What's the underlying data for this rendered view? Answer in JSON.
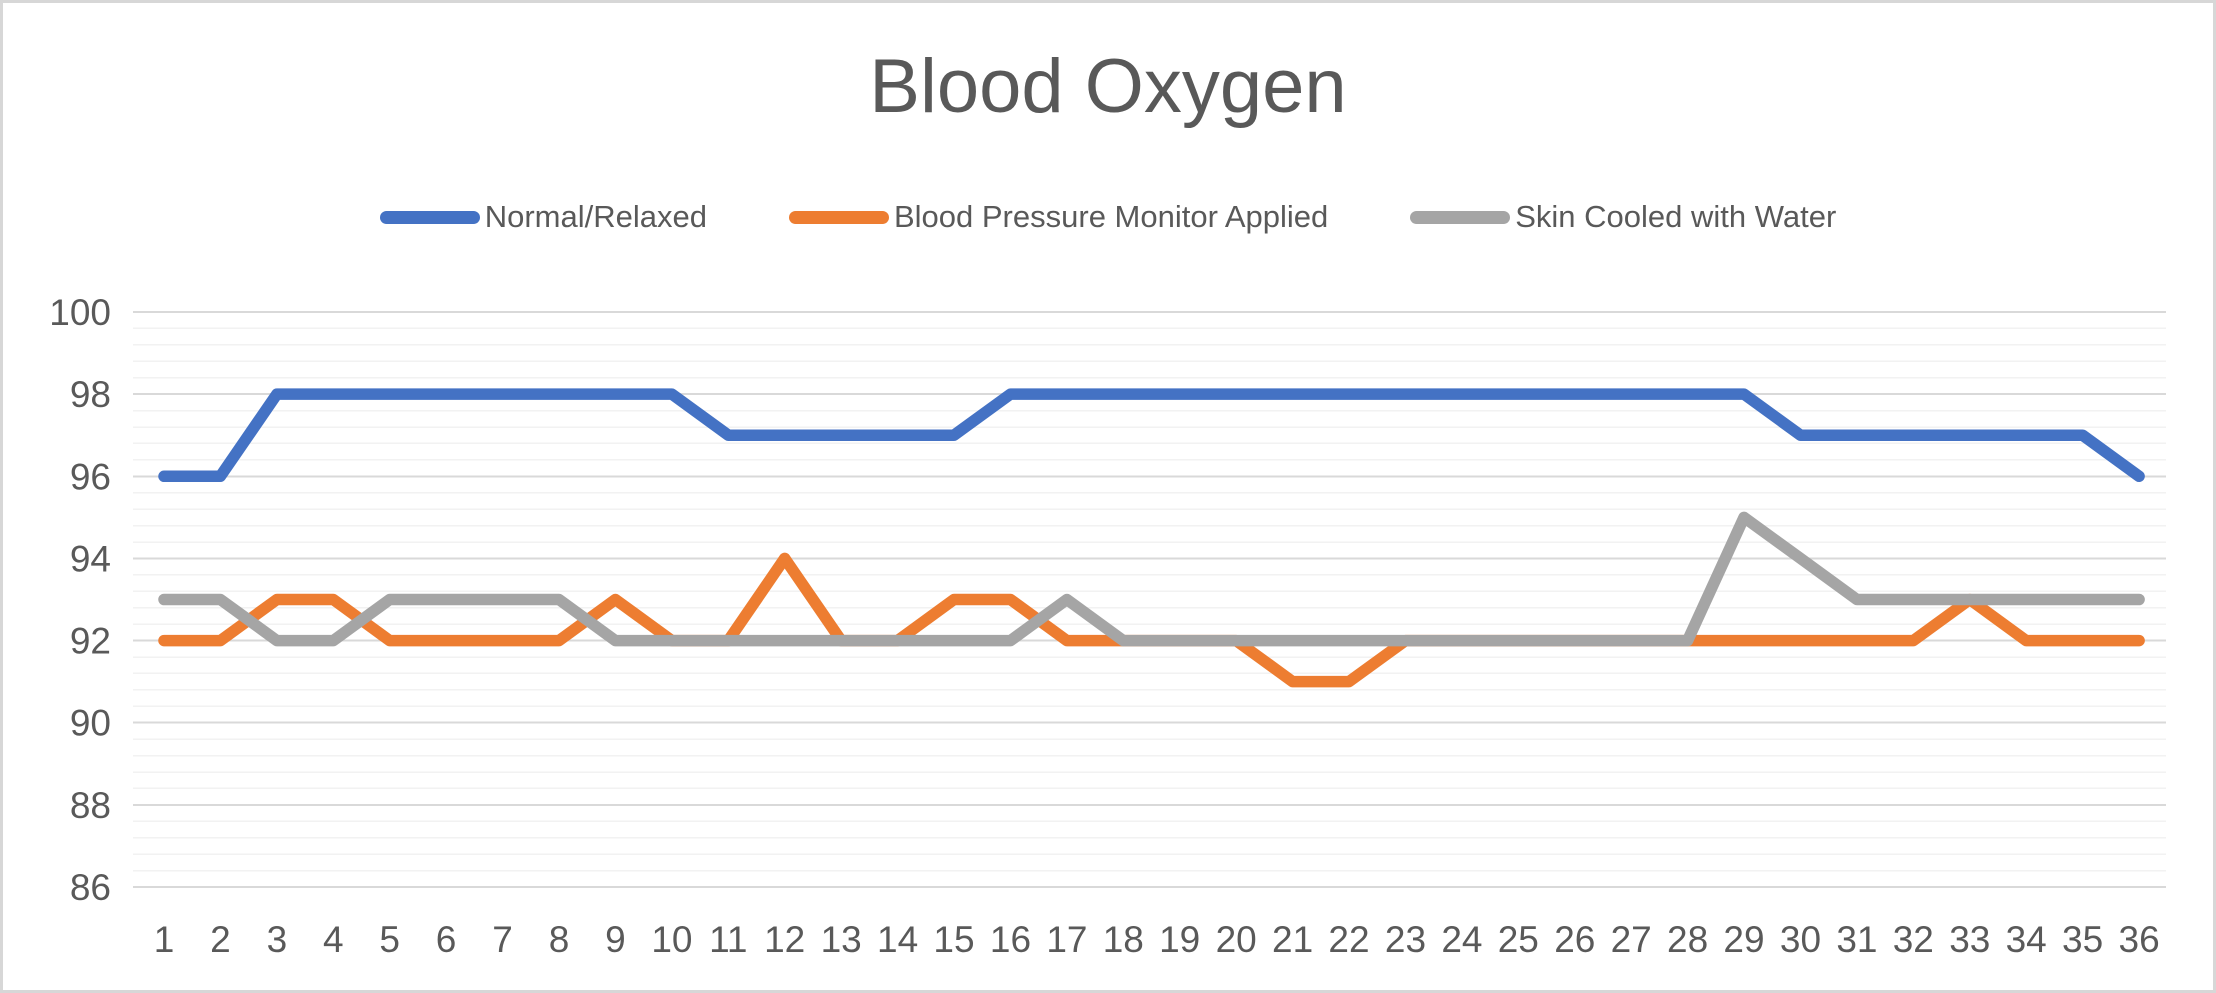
{
  "chart": {
    "background": "#ffffff",
    "border_color": "#d7d7d7",
    "text_color": "#595959",
    "gridline_major_color": "#d9d9d9",
    "gridline_minor_color": "#f2f2f2"
  },
  "chart_data": {
    "type": "line",
    "title": "Blood Oxygen",
    "x": [
      1,
      2,
      3,
      4,
      5,
      6,
      7,
      8,
      9,
      10,
      11,
      12,
      13,
      14,
      15,
      16,
      17,
      18,
      19,
      20,
      21,
      22,
      23,
      24,
      25,
      26,
      27,
      28,
      29,
      30,
      31,
      32,
      33,
      34,
      35,
      36
    ],
    "series": [
      {
        "name": "Normal/Relaxed",
        "color": "#4472C4",
        "values": [
          96,
          96,
          98,
          98,
          98,
          98,
          98,
          98,
          98,
          98,
          97,
          97,
          97,
          97,
          97,
          98,
          98,
          98,
          98,
          98,
          98,
          98,
          98,
          98,
          98,
          98,
          98,
          98,
          98,
          97,
          97,
          97,
          97,
          97,
          97,
          96
        ]
      },
      {
        "name": "Blood Pressure Monitor Applied",
        "color": "#ED7D31",
        "values": [
          92,
          92,
          93,
          93,
          92,
          92,
          92,
          92,
          93,
          92,
          92,
          94,
          92,
          92,
          93,
          93,
          92,
          92,
          92,
          92,
          91,
          91,
          92,
          92,
          92,
          92,
          92,
          92,
          92,
          92,
          92,
          92,
          93,
          92,
          92,
          92
        ]
      },
      {
        "name": "Skin Cooled with Water",
        "color": "#A5A5A5",
        "values": [
          93,
          93,
          92,
          92,
          93,
          93,
          93,
          93,
          92,
          92,
          92,
          92,
          92,
          92,
          92,
          92,
          93,
          92,
          92,
          92,
          92,
          92,
          92,
          92,
          92,
          92,
          92,
          92,
          95,
          94,
          93,
          93,
          93,
          93,
          93,
          93
        ]
      }
    ],
    "ylim": [
      86,
      100
    ],
    "y_major_step": 2,
    "y_minor_step": 0.4,
    "y_tick_labels": [
      "100",
      "98",
      "96",
      "94",
      "92",
      "90",
      "88",
      "86"
    ],
    "grid": "major and minor horizontal gridlines",
    "legend_position": "top"
  }
}
